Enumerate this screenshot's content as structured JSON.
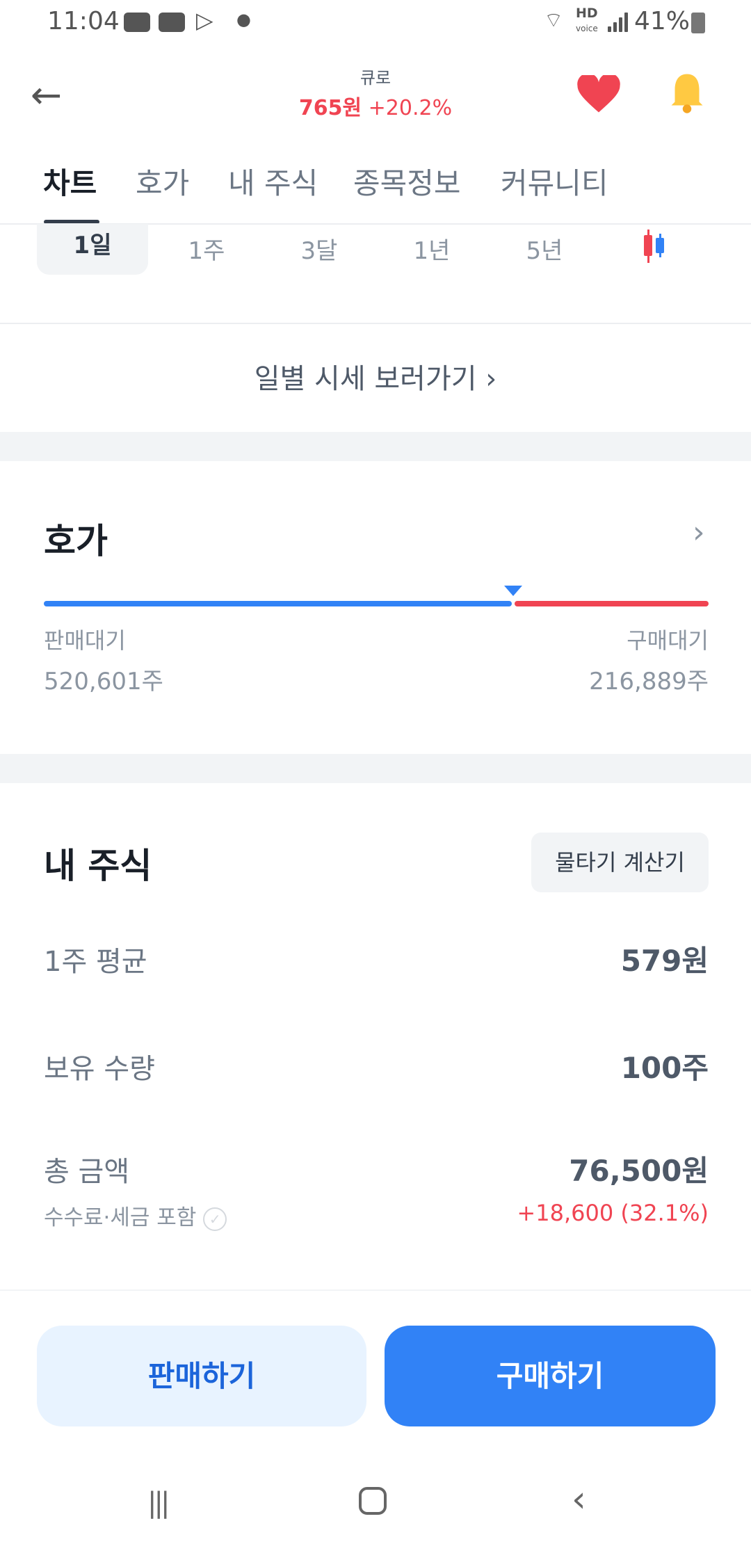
{
  "status_bar": {
    "time": "11:04",
    "battery": "41%",
    "hd": "HD",
    "voice": "voice"
  },
  "header": {
    "stock_name": "큐로",
    "price": "765원",
    "change": "+20.2%"
  },
  "tabs": [
    {
      "label": "차트",
      "active": true
    },
    {
      "label": "호가"
    },
    {
      "label": "내 주식"
    },
    {
      "label": "종목정보"
    },
    {
      "label": "커뮤니티"
    }
  ],
  "periods": [
    {
      "label": "1일",
      "selected": true
    },
    {
      "label": "1주"
    },
    {
      "label": "3달"
    },
    {
      "label": "1년"
    },
    {
      "label": "5년"
    }
  ],
  "daily_link": "일별 시세 보러가기",
  "orderbook": {
    "title": "호가",
    "sell_label": "판매대기",
    "sell_qty": "520,601주",
    "buy_label": "구매대기",
    "buy_qty": "216,889주",
    "sell_fraction": 0.706
  },
  "my_stock": {
    "title": "내 주식",
    "calc_button": "물타기 계산기",
    "rows": [
      {
        "label": "1주 평균",
        "value": "579원"
      },
      {
        "label": "보유 수량",
        "value": "100주"
      }
    ],
    "total_label": "총 금액",
    "total_value": "76,500원",
    "fee_note": "수수료·세금 포함",
    "profit": "+18,600 (32.1%)"
  },
  "actions": {
    "sell": "판매하기",
    "buy": "구매하기"
  },
  "colors": {
    "blue": "#3182f6",
    "red": "#f04452",
    "heart": "#f04452",
    "bell": "#ffc942"
  }
}
